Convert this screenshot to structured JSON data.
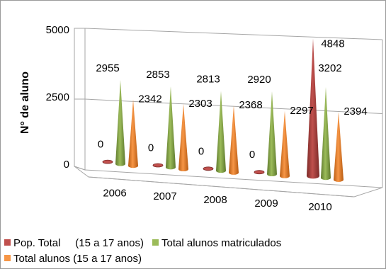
{
  "chart_data": {
    "type": "bar",
    "style": "3d-cone",
    "categories": [
      "2006",
      "2007",
      "2008",
      "2009",
      "2010"
    ],
    "series": [
      {
        "name": "Pop. Total     (15 a 17 anos)",
        "values": [
          0,
          0,
          0,
          0,
          4848
        ],
        "color": "#c0504d"
      },
      {
        "name": "Total alunos matriculados",
        "values": [
          2955,
          2853,
          2813,
          2920,
          3202
        ],
        "color": "#9bbb59"
      },
      {
        "name": "Total alunos (15 a 17 anos)",
        "values": [
          2342,
          2303,
          2368,
          2297,
          2394
        ],
        "color": "#f79646"
      }
    ],
    "ylabel": "N° de aluno",
    "xlabel": "",
    "title": "",
    "ylim": [
      0,
      5000
    ],
    "yticks": [
      "0",
      "2500",
      "5000"
    ],
    "grid": true,
    "legend_position": "bottom"
  }
}
